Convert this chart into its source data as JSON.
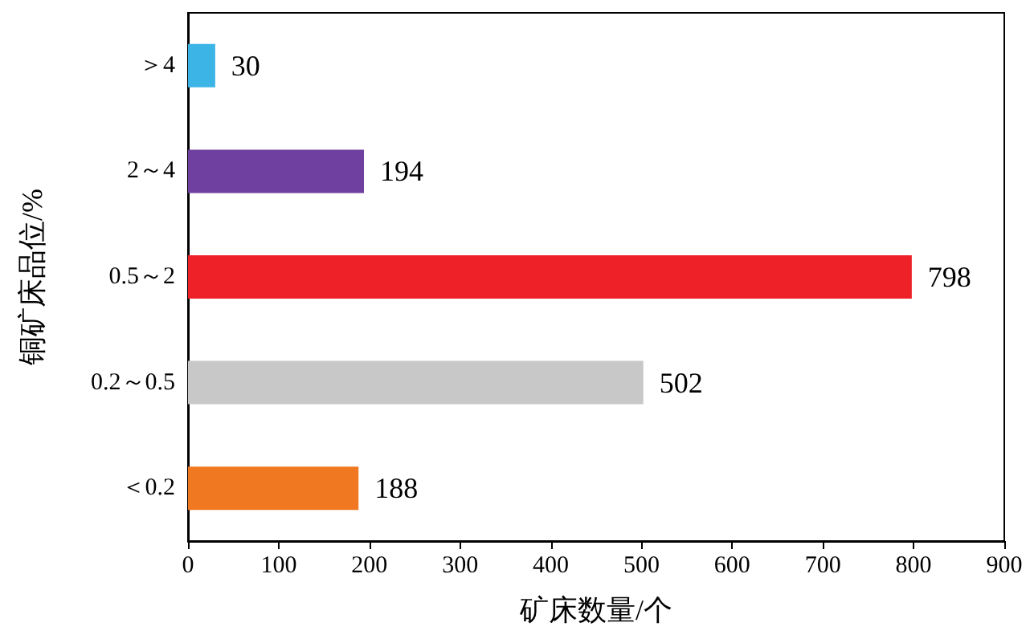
{
  "chart_data": {
    "type": "bar",
    "orientation": "horizontal",
    "categories": [
      "＞4",
      "2～4",
      "0.5～2",
      "0.2～0.5",
      "＜0.2"
    ],
    "values": [
      30,
      194,
      798,
      502,
      188
    ],
    "colors": [
      "#3cb4e6",
      "#7040a0",
      "#ee2028",
      "#c8c8c8",
      "#f07820"
    ],
    "xlim": [
      0,
      900
    ],
    "xticks": [
      0,
      100,
      200,
      300,
      400,
      500,
      600,
      700,
      800,
      900
    ],
    "xlabel": "矿床数量/个",
    "ylabel": "铜矿床品位/%",
    "data_labels": true,
    "grid": false
  }
}
